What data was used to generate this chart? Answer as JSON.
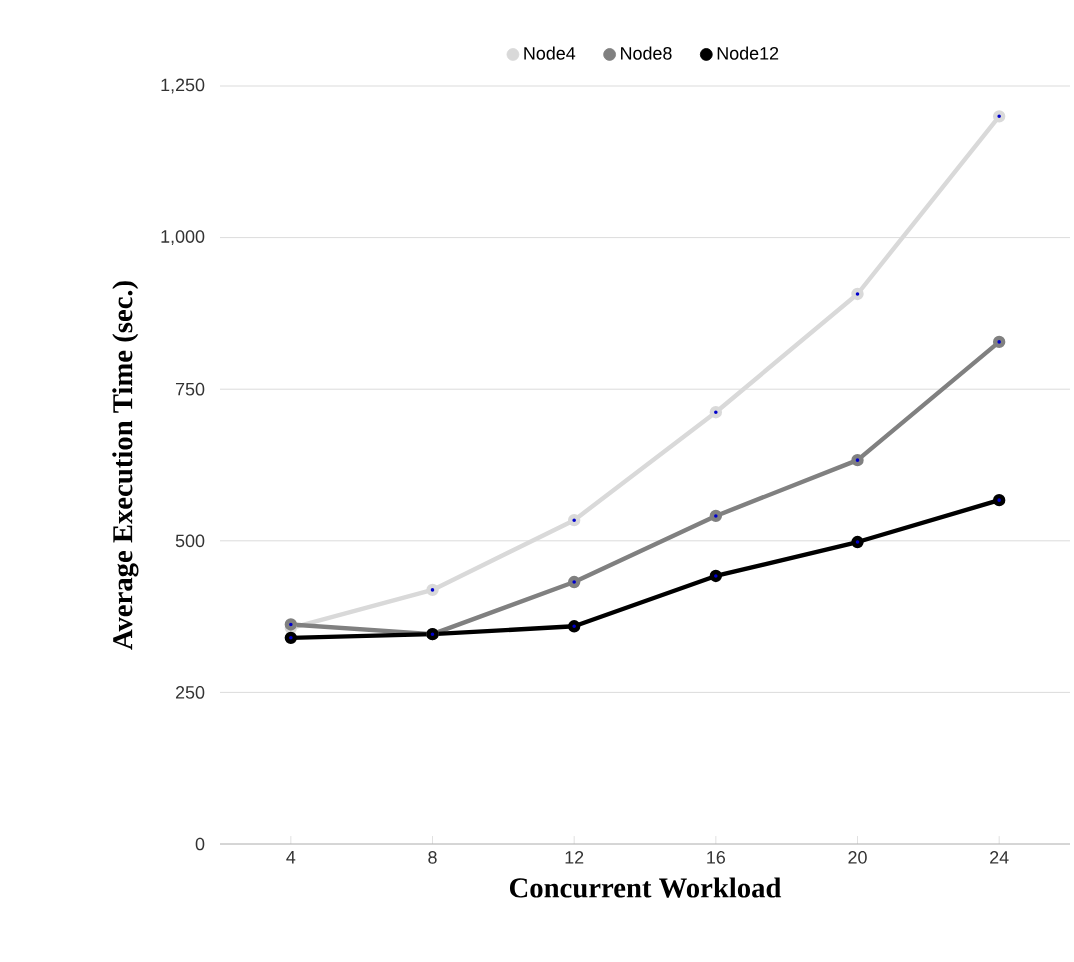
{
  "chart_data": {
    "type": "line",
    "xlabel": "Concurrent Workload",
    "ylabel": "Average Execution Time (sec.)",
    "categories": [
      "4",
      "8",
      "12",
      "16",
      "20",
      "24"
    ],
    "series": [
      {
        "name": "Node4",
        "color": "#d9d9d9",
        "values": [
          356,
          419,
          534,
          712,
          907,
          1200
        ]
      },
      {
        "name": "Node8",
        "color": "#808080",
        "values": [
          362,
          346,
          432,
          541,
          633,
          828
        ]
      },
      {
        "name": "Node12",
        "color": "#000000",
        "values": [
          340,
          346,
          359,
          442,
          498,
          567
        ]
      }
    ],
    "ylim": [
      0,
      1250
    ],
    "yticks": [
      0,
      250,
      500,
      750,
      {
        "value": 1000,
        "label": "1,000"
      },
      {
        "value": 1250,
        "label": "1,250"
      }
    ],
    "grid": "y",
    "legend": "top",
    "marker": "circle",
    "line_style": "solid"
  }
}
